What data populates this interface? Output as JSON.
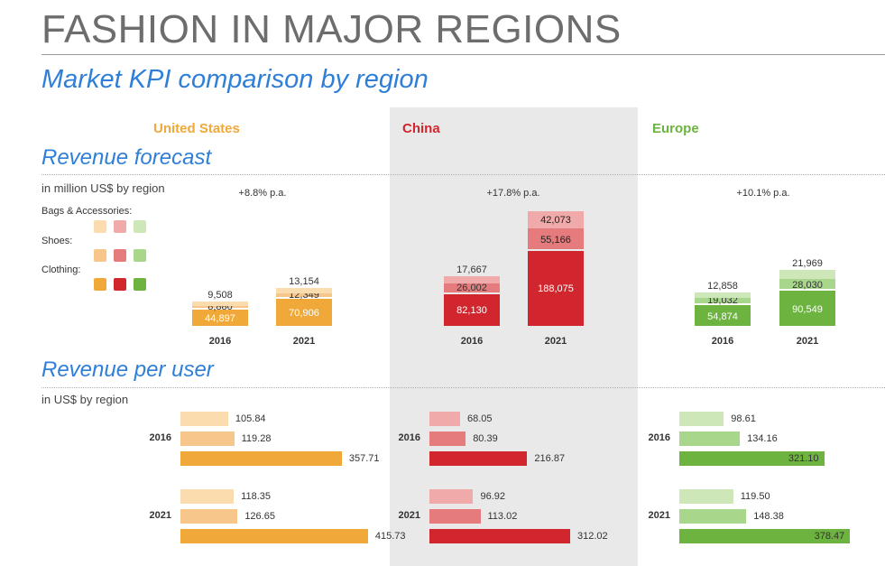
{
  "title": "FASHION IN MAJOR REGIONS",
  "subtitle": "Market KPI comparison by region",
  "colors": {
    "us": {
      "bags": "#fbdcae",
      "shoes": "#f6c68a",
      "clothing": "#f0a938"
    },
    "china": {
      "bags": "#f0aaa9",
      "shoes": "#e57b7c",
      "clothing": "#d1262d"
    },
    "europe": {
      "bags": "#cde7b9",
      "shoes": "#a8d68b",
      "clothing": "#6db33f"
    }
  },
  "chart_data": [
    {
      "type": "bar",
      "stacked": true,
      "title": "Revenue forecast",
      "ylabel": "in million US$ by region",
      "legend": [
        "Bags & Accessories:",
        "Shoes:",
        "Clothing:"
      ],
      "regions": [
        {
          "name": "United States",
          "growth": "+8.8% p.a.",
          "bars": [
            {
              "year": "2016",
              "clothing": 44897,
              "shoes": 8880,
              "bags": 9508,
              "labels": {
                "clothing": "44,897",
                "shoes": "8,880",
                "bags": "9,508"
              }
            },
            {
              "year": "2021",
              "clothing": 70906,
              "shoes": 12349,
              "bags": 13154,
              "labels": {
                "clothing": "70,906",
                "shoes": "12,349",
                "bags": "13,154"
              }
            }
          ]
        },
        {
          "name": "China",
          "growth": "+17.8% p.a.",
          "bars": [
            {
              "year": "2016",
              "clothing": 82130,
              "shoes": 26002,
              "bags": 17667,
              "labels": {
                "clothing": "82,130",
                "shoes": "26,002",
                "bags": "17,667"
              }
            },
            {
              "year": "2021",
              "clothing": 188075,
              "shoes": 55166,
              "bags": 42073,
              "labels": {
                "clothing": "188,075",
                "shoes": "55,166",
                "bags": "42,073"
              }
            }
          ]
        },
        {
          "name": "Europe",
          "growth": "+10.1% p.a.",
          "bars": [
            {
              "year": "2016",
              "clothing": 54874,
              "shoes": 19032,
              "bags": 12858,
              "labels": {
                "clothing": "54,874",
                "shoes": "19,032",
                "bags": "12,858"
              }
            },
            {
              "year": "2021",
              "clothing": 90549,
              "shoes": 28030,
              "bags": 21969,
              "labels": {
                "clothing": "90,549",
                "shoes": "28,030",
                "bags": "21,969"
              }
            }
          ]
        }
      ]
    },
    {
      "type": "bar",
      "orientation": "horizontal",
      "title": "Revenue per user",
      "xlabel": "in US$ by region",
      "regions": [
        {
          "name": "United States",
          "years": [
            {
              "year": "2016",
              "bags": 105.84,
              "shoes": 119.28,
              "clothing": 357.71,
              "labels": {
                "bags": "105.84",
                "shoes": "119.28",
                "clothing": "357.71"
              }
            },
            {
              "year": "2021",
              "bags": 118.35,
              "shoes": 126.65,
              "clothing": 415.73,
              "labels": {
                "bags": "118.35",
                "shoes": "126.65",
                "clothing": "415.73"
              }
            }
          ]
        },
        {
          "name": "China",
          "years": [
            {
              "year": "2016",
              "bags": 68.05,
              "shoes": 80.39,
              "clothing": 216.87,
              "labels": {
                "bags": "68.05",
                "shoes": "80.39",
                "clothing": "216.87"
              }
            },
            {
              "year": "2021",
              "bags": 96.92,
              "shoes": 113.02,
              "clothing": 312.02,
              "labels": {
                "bags": "96.92",
                "shoes": "113.02",
                "clothing": "312.02"
              }
            }
          ]
        },
        {
          "name": "Europe",
          "years": [
            {
              "year": "2016",
              "bags": 98.61,
              "shoes": 134.16,
              "clothing": 321.1,
              "labels": {
                "bags": "98.61",
                "shoes": "134.16",
                "clothing": "321.10"
              }
            },
            {
              "year": "2021",
              "bags": 119.5,
              "shoes": 148.38,
              "clothing": 378.47,
              "labels": {
                "bags": "119.50",
                "shoes": "148.38",
                "clothing": "378.47"
              }
            }
          ]
        }
      ]
    }
  ]
}
